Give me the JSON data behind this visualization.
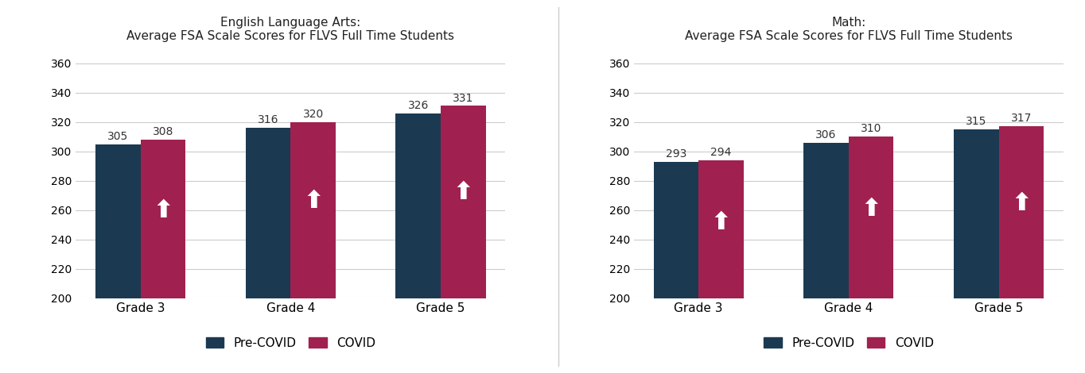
{
  "charts": [
    {
      "title": "English Language Arts:\nAverage FSA Scale Scores for FLVS Full Time Students",
      "categories": [
        "Grade 3",
        "Grade 4",
        "Grade 5"
      ],
      "pre_covid": [
        305,
        316,
        326
      ],
      "covid": [
        308,
        320,
        331
      ],
      "ylim": [
        200,
        370
      ],
      "yticks": [
        200,
        220,
        240,
        260,
        280,
        300,
        320,
        340,
        360
      ]
    },
    {
      "title": "Math:\nAverage FSA Scale Scores for FLVS Full Time Students",
      "categories": [
        "Grade 3",
        "Grade 4",
        "Grade 5"
      ],
      "pre_covid": [
        293,
        306,
        315
      ],
      "covid": [
        294,
        310,
        317
      ],
      "ylim": [
        200,
        370
      ],
      "yticks": [
        200,
        220,
        240,
        260,
        280,
        300,
        320,
        340,
        360
      ]
    }
  ],
  "pre_covid_color": "#1B3A52",
  "covid_color": "#A0214F",
  "background_color": "#FFFFFF",
  "title_fontsize": 11,
  "label_fontsize": 11,
  "tick_fontsize": 10,
  "legend_fontsize": 11,
  "bar_width": 0.3,
  "value_label_fontsize": 10
}
